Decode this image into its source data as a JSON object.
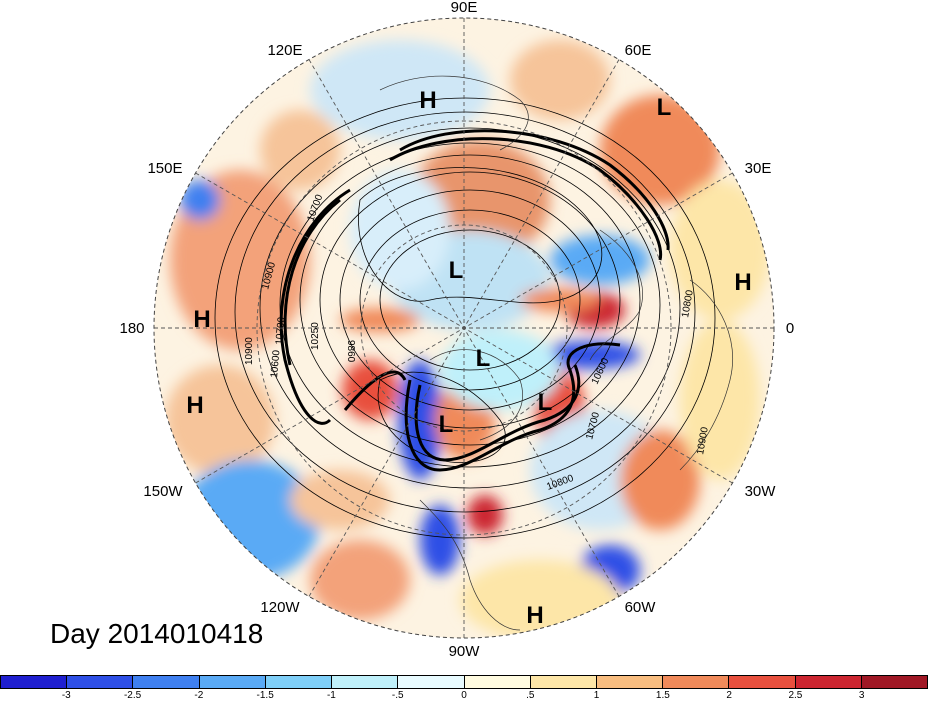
{
  "map": {
    "lon_labels": [
      {
        "text": "90E"
      },
      {
        "text": "60E"
      },
      {
        "text": "30E"
      },
      {
        "text": "0"
      },
      {
        "text": "30W"
      },
      {
        "text": "60W"
      },
      {
        "text": "90W"
      },
      {
        "text": "120W"
      },
      {
        "text": "150W"
      },
      {
        "text": "180"
      },
      {
        "text": "150E"
      },
      {
        "text": "120E"
      }
    ],
    "pressure_centers": [
      {
        "text": "H"
      },
      {
        "text": "L"
      },
      {
        "text": "H"
      },
      {
        "text": "H"
      },
      {
        "text": "H"
      },
      {
        "text": "L"
      },
      {
        "text": "L"
      },
      {
        "text": "L"
      },
      {
        "text": "L"
      },
      {
        "text": "H"
      }
    ],
    "contour_labels": [
      {
        "text": "10700"
      },
      {
        "text": "10900"
      },
      {
        "text": "10900"
      },
      {
        "text": "10700"
      },
      {
        "text": "10250"
      },
      {
        "text": "9860"
      },
      {
        "text": "10600"
      },
      {
        "text": "10800"
      },
      {
        "text": "10800"
      },
      {
        "text": "10700"
      },
      {
        "text": "10900"
      },
      {
        "text": "10600"
      }
    ]
  },
  "date_label": "Day 2014010418",
  "colorbar": {
    "colors": [
      "#1f1fd0",
      "#2e4fe6",
      "#3f80f0",
      "#5aaaf5",
      "#7fcff8",
      "#bff0fa",
      "#e8fbff",
      "#fffbe0",
      "#fde6a8",
      "#f8bd80",
      "#f08a5a",
      "#e8503e",
      "#cc2530",
      "#a01825"
    ],
    "ticks": [
      "-3",
      "-2.5",
      "-2",
      "-1.5",
      "-1",
      "-.5",
      "0",
      ".5",
      "1",
      "1.5",
      "2",
      "2.5",
      "3"
    ]
  }
}
